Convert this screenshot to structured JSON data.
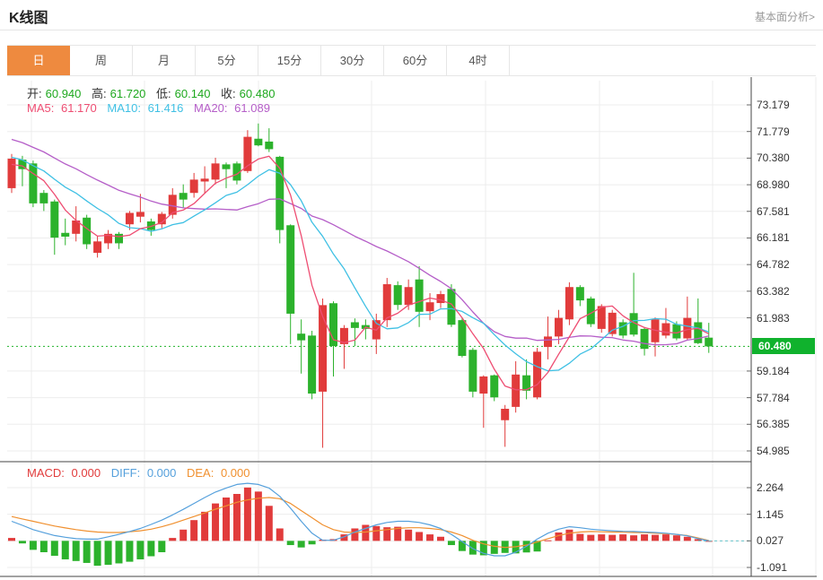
{
  "header": {
    "title": "K线图",
    "link": "基本面分析>"
  },
  "tabs": {
    "items": [
      "日",
      "周",
      "月",
      "5分",
      "15分",
      "30分",
      "60分",
      "4时"
    ],
    "active_index": 0
  },
  "legend": {
    "open_label": "开:",
    "open": "60.940",
    "high_label": "高:",
    "high": "61.720",
    "low_label": "低:",
    "low": "60.140",
    "close_label": "收:",
    "close": "60.480",
    "ma5_label": "MA5:",
    "ma5": "61.170",
    "ma10_label": "MA10:",
    "ma10": "61.416",
    "ma20_label": "MA20:",
    "ma20": "61.089"
  },
  "macd_legend": {
    "macd_label": "MACD:",
    "macd": "0.000",
    "diff_label": "DIFF:",
    "diff": "0.000",
    "dea_label": "DEA:",
    "dea": "0.000"
  },
  "colors": {
    "up": "#e13b3b",
    "down": "#2cb22c",
    "ma5": "#ee4d72",
    "ma10": "#3fc0e4",
    "ma20": "#b55ec8",
    "diff": "#55a0dc",
    "dea": "#f0902f",
    "tab_active": "#ee8a3f",
    "badge": "#10b22d",
    "value_green": "#1ea81e",
    "grid": "#ededed",
    "axis": "#444444",
    "dotted_line": "#22b22b",
    "zero_tail": "#66c4cc"
  },
  "chart_data": {
    "type": "candlestick+macd",
    "price_axis": {
      "ticks": [
        73.179,
        71.779,
        70.38,
        68.98,
        67.581,
        66.181,
        64.782,
        63.382,
        61.983,
        59.184,
        57.784,
        56.385,
        54.985
      ],
      "current_price": 60.48,
      "min": 54.985,
      "max": 73.179
    },
    "macd_axis": {
      "ticks": [
        2.264,
        1.145,
        0.027,
        -1.091
      ]
    },
    "candles_ohlc": [
      [
        68.8,
        70.6,
        68.55,
        70.35
      ],
      [
        70.3,
        70.5,
        68.9,
        69.8
      ],
      [
        70.1,
        70.25,
        67.8,
        68.0
      ],
      [
        68.55,
        68.7,
        67.6,
        68.0
      ],
      [
        68.1,
        68.2,
        65.3,
        66.2
      ],
      [
        66.45,
        67.2,
        65.8,
        66.25
      ],
      [
        66.4,
        67.85,
        66.0,
        67.1
      ],
      [
        67.25,
        67.4,
        65.6,
        65.85
      ],
      [
        65.4,
        66.3,
        65.15,
        66.0
      ],
      [
        65.9,
        66.6,
        65.6,
        66.4
      ],
      [
        66.4,
        66.5,
        65.6,
        65.9
      ],
      [
        66.9,
        67.6,
        66.6,
        67.5
      ],
      [
        67.3,
        68.5,
        67.0,
        67.55
      ],
      [
        67.05,
        67.2,
        66.3,
        66.6
      ],
      [
        66.9,
        67.55,
        66.7,
        67.45
      ],
      [
        67.4,
        68.8,
        67.2,
        68.45
      ],
      [
        68.55,
        69.0,
        67.75,
        68.2
      ],
      [
        68.55,
        69.6,
        68.3,
        69.25
      ],
      [
        69.15,
        69.95,
        68.5,
        69.3
      ],
      [
        69.25,
        70.4,
        69.0,
        70.1
      ],
      [
        70.05,
        70.15,
        68.8,
        69.8
      ],
      [
        70.1,
        70.2,
        69.0,
        69.2
      ],
      [
        69.7,
        71.85,
        69.6,
        71.5
      ],
      [
        71.4,
        72.2,
        71.0,
        71.05
      ],
      [
        71.25,
        71.95,
        70.7,
        70.85
      ],
      [
        70.45,
        70.5,
        65.9,
        66.6
      ],
      [
        66.85,
        66.9,
        60.6,
        62.2
      ],
      [
        61.15,
        61.9,
        59.05,
        60.8
      ],
      [
        61.05,
        61.3,
        57.7,
        58.0
      ],
      [
        58.1,
        63.0,
        55.15,
        62.65
      ],
      [
        62.75,
        62.85,
        58.9,
        60.5
      ],
      [
        60.6,
        61.6,
        59.3,
        61.45
      ],
      [
        61.75,
        61.95,
        60.5,
        61.45
      ],
      [
        61.6,
        61.9,
        60.85,
        61.4
      ],
      [
        60.85,
        62.2,
        60.08,
        61.86
      ],
      [
        61.86,
        64.08,
        61.5,
        63.75
      ],
      [
        63.7,
        63.9,
        62.4,
        62.66
      ],
      [
        62.66,
        64.0,
        62.4,
        63.6
      ],
      [
        64.0,
        64.7,
        61.5,
        62.3
      ],
      [
        62.33,
        63.28,
        61.86,
        62.8
      ],
      [
        62.76,
        63.4,
        62.5,
        63.23
      ],
      [
        63.5,
        63.75,
        61.5,
        61.62
      ],
      [
        61.86,
        62.0,
        59.9,
        59.98
      ],
      [
        60.3,
        60.4,
        57.8,
        58.1
      ],
      [
        58.0,
        58.96,
        56.2,
        58.9
      ],
      [
        58.96,
        59.0,
        57.6,
        57.8
      ],
      [
        56.6,
        57.4,
        55.2,
        57.2
      ],
      [
        57.3,
        59.7,
        57.0,
        59.0
      ],
      [
        58.96,
        59.8,
        57.7,
        58.15
      ],
      [
        57.8,
        60.4,
        57.7,
        60.2
      ],
      [
        60.45,
        62.05,
        59.8,
        61.0
      ],
      [
        61.0,
        62.4,
        60.6,
        61.98
      ],
      [
        61.9,
        63.85,
        61.6,
        63.6
      ],
      [
        63.6,
        63.7,
        62.6,
        62.9
      ],
      [
        63.0,
        63.1,
        61.5,
        61.65
      ],
      [
        61.4,
        62.7,
        61.2,
        62.6
      ],
      [
        61.13,
        62.4,
        61.0,
        62.25
      ],
      [
        61.75,
        61.9,
        60.9,
        61.05
      ],
      [
        62.23,
        64.35,
        61.0,
        61.1
      ],
      [
        61.4,
        61.5,
        60.0,
        60.35
      ],
      [
        60.7,
        62.0,
        59.95,
        61.9
      ],
      [
        61.05,
        62.5,
        60.9,
        61.7
      ],
      [
        61.65,
        61.8,
        60.8,
        60.9
      ],
      [
        60.9,
        63.1,
        60.8,
        61.98
      ],
      [
        61.75,
        63.0,
        60.6,
        60.65
      ],
      [
        60.94,
        61.72,
        60.14,
        60.48
      ]
    ],
    "ma_periods": [
      5,
      10,
      20
    ],
    "ma_seed": [
      73.4,
      73.2,
      73.0,
      72.8,
      72.6,
      72.4,
      72.2,
      72.0,
      71.8,
      71.6,
      71.4,
      71.2,
      71.0,
      70.8,
      70.6,
      70.4,
      70.2,
      70.0,
      69.9,
      69.8
    ],
    "macd_hist": [
      0.15,
      -0.08,
      -0.35,
      -0.45,
      -0.6,
      -0.75,
      -0.82,
      -0.9,
      -1.02,
      -0.98,
      -0.92,
      -0.85,
      -0.75,
      -0.62,
      -0.45,
      0.15,
      0.5,
      0.9,
      1.25,
      1.6,
      1.85,
      2.0,
      2.27,
      2.1,
      1.5,
      0.55,
      -0.15,
      -0.25,
      -0.12,
      0.08,
      0.1,
      0.3,
      0.55,
      0.7,
      0.65,
      0.6,
      0.62,
      0.5,
      0.4,
      0.3,
      0.2,
      -0.15,
      -0.4,
      -0.55,
      -0.58,
      -0.52,
      -0.48,
      -0.5,
      -0.46,
      -0.42,
      0.05,
      0.38,
      0.5,
      0.32,
      0.28,
      0.3,
      0.28,
      0.3,
      0.26,
      0.3,
      0.28,
      0.3,
      0.26,
      0.2,
      0.1,
      0.02
    ],
    "diff_line": [
      0.85,
      0.68,
      0.5,
      0.37,
      0.25,
      0.18,
      0.12,
      0.1,
      0.1,
      0.2,
      0.3,
      0.42,
      0.55,
      0.72,
      0.9,
      1.12,
      1.35,
      1.6,
      1.85,
      2.08,
      2.25,
      2.4,
      2.45,
      2.4,
      2.25,
      1.9,
      1.4,
      0.85,
      0.35,
      0.05,
      0.05,
      0.2,
      0.4,
      0.55,
      0.7,
      0.8,
      0.85,
      0.85,
      0.8,
      0.7,
      0.55,
      0.3,
      0.0,
      -0.3,
      -0.5,
      -0.6,
      -0.6,
      -0.45,
      -0.2,
      0.1,
      0.35,
      0.52,
      0.62,
      0.58,
      0.52,
      0.48,
      0.45,
      0.43,
      0.42,
      0.4,
      0.38,
      0.35,
      0.3,
      0.24,
      0.12,
      0.03
    ],
    "dea_line": [
      1.05,
      0.95,
      0.85,
      0.75,
      0.65,
      0.57,
      0.5,
      0.44,
      0.4,
      0.38,
      0.38,
      0.41,
      0.45,
      0.52,
      0.62,
      0.75,
      0.9,
      1.05,
      1.2,
      1.36,
      1.5,
      1.65,
      1.75,
      1.82,
      1.85,
      1.8,
      1.6,
      1.3,
      1.0,
      0.7,
      0.5,
      0.4,
      0.38,
      0.4,
      0.45,
      0.5,
      0.55,
      0.58,
      0.58,
      0.55,
      0.5,
      0.4,
      0.25,
      0.05,
      -0.1,
      -0.2,
      -0.25,
      -0.22,
      -0.15,
      -0.02,
      0.12,
      0.25,
      0.35,
      0.4,
      0.42,
      0.41,
      0.4,
      0.39,
      0.38,
      0.37,
      0.35,
      0.33,
      0.3,
      0.25,
      0.15,
      0.04
    ]
  }
}
